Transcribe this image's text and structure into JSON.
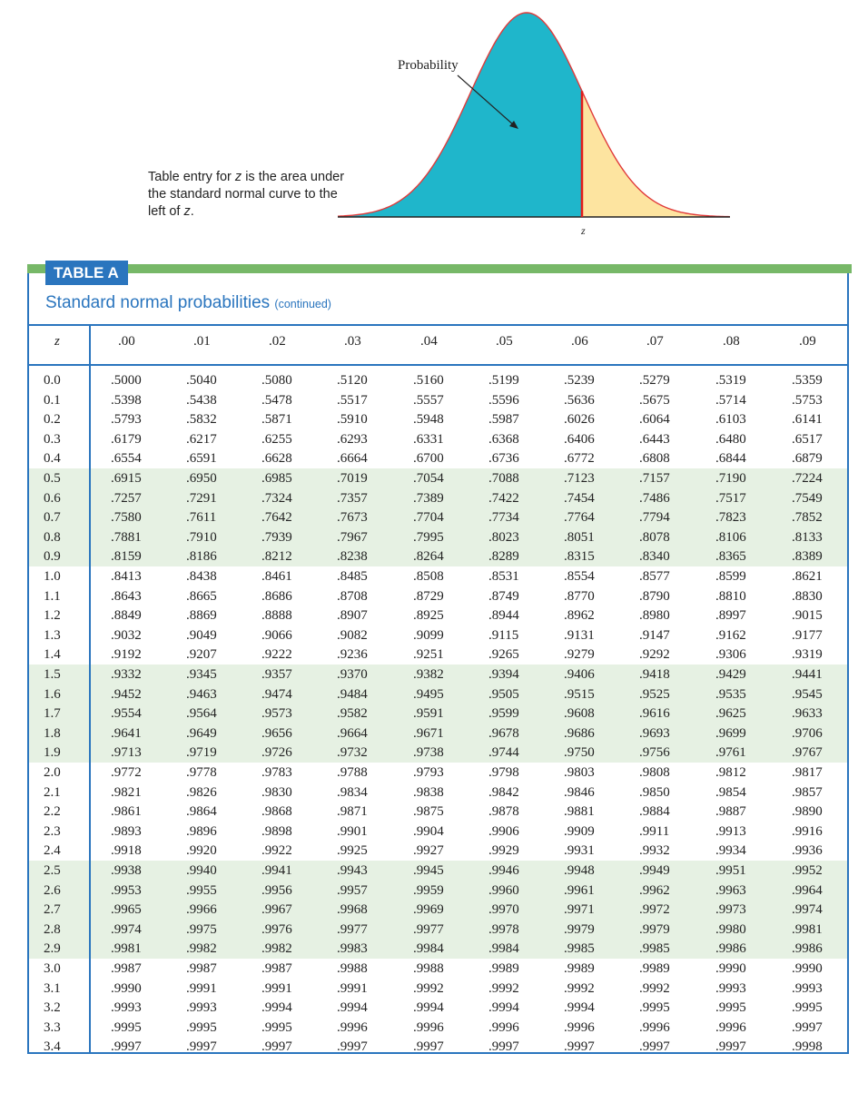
{
  "figure": {
    "probability_label": "Probability",
    "z_label": "z",
    "colors": {
      "shaded_area": "#1fb6cb",
      "right_tail": "#fde4a0",
      "curve": "#e03a3a",
      "z_line": "#e21b1b"
    }
  },
  "caption": {
    "text_1": "Table entry for ",
    "z1": "z",
    "text_2": " is the area under the standard normal curve to the left of ",
    "z2": "z",
    "text_3": "."
  },
  "table": {
    "label": "TABLE A",
    "title": "Standard normal probabilities",
    "title_note": "(continued)",
    "corner_header": "z",
    "column_headers": [
      ".00",
      ".01",
      ".02",
      ".03",
      ".04",
      ".05",
      ".06",
      ".07",
      ".08",
      ".09"
    ],
    "rows": [
      {
        "z": "0.0",
        "values": [
          ".5000",
          ".5040",
          ".5080",
          ".5120",
          ".5160",
          ".5199",
          ".5239",
          ".5279",
          ".5319",
          ".5359"
        ]
      },
      {
        "z": "0.1",
        "values": [
          ".5398",
          ".5438",
          ".5478",
          ".5517",
          ".5557",
          ".5596",
          ".5636",
          ".5675",
          ".5714",
          ".5753"
        ]
      },
      {
        "z": "0.2",
        "values": [
          ".5793",
          ".5832",
          ".5871",
          ".5910",
          ".5948",
          ".5987",
          ".6026",
          ".6064",
          ".6103",
          ".6141"
        ]
      },
      {
        "z": "0.3",
        "values": [
          ".6179",
          ".6217",
          ".6255",
          ".6293",
          ".6331",
          ".6368",
          ".6406",
          ".6443",
          ".6480",
          ".6517"
        ]
      },
      {
        "z": "0.4",
        "values": [
          ".6554",
          ".6591",
          ".6628",
          ".6664",
          ".6700",
          ".6736",
          ".6772",
          ".6808",
          ".6844",
          ".6879"
        ]
      },
      {
        "z": "0.5",
        "values": [
          ".6915",
          ".6950",
          ".6985",
          ".7019",
          ".7054",
          ".7088",
          ".7123",
          ".7157",
          ".7190",
          ".7224"
        ]
      },
      {
        "z": "0.6",
        "values": [
          ".7257",
          ".7291",
          ".7324",
          ".7357",
          ".7389",
          ".7422",
          ".7454",
          ".7486",
          ".7517",
          ".7549"
        ]
      },
      {
        "z": "0.7",
        "values": [
          ".7580",
          ".7611",
          ".7642",
          ".7673",
          ".7704",
          ".7734",
          ".7764",
          ".7794",
          ".7823",
          ".7852"
        ]
      },
      {
        "z": "0.8",
        "values": [
          ".7881",
          ".7910",
          ".7939",
          ".7967",
          ".7995",
          ".8023",
          ".8051",
          ".8078",
          ".8106",
          ".8133"
        ]
      },
      {
        "z": "0.9",
        "values": [
          ".8159",
          ".8186",
          ".8212",
          ".8238",
          ".8264",
          ".8289",
          ".8315",
          ".8340",
          ".8365",
          ".8389"
        ]
      },
      {
        "z": "1.0",
        "values": [
          ".8413",
          ".8438",
          ".8461",
          ".8485",
          ".8508",
          ".8531",
          ".8554",
          ".8577",
          ".8599",
          ".8621"
        ]
      },
      {
        "z": "1.1",
        "values": [
          ".8643",
          ".8665",
          ".8686",
          ".8708",
          ".8729",
          ".8749",
          ".8770",
          ".8790",
          ".8810",
          ".8830"
        ]
      },
      {
        "z": "1.2",
        "values": [
          ".8849",
          ".8869",
          ".8888",
          ".8907",
          ".8925",
          ".8944",
          ".8962",
          ".8980",
          ".8997",
          ".9015"
        ]
      },
      {
        "z": "1.3",
        "values": [
          ".9032",
          ".9049",
          ".9066",
          ".9082",
          ".9099",
          ".9115",
          ".9131",
          ".9147",
          ".9162",
          ".9177"
        ]
      },
      {
        "z": "1.4",
        "values": [
          ".9192",
          ".9207",
          ".9222",
          ".9236",
          ".9251",
          ".9265",
          ".9279",
          ".9292",
          ".9306",
          ".9319"
        ]
      },
      {
        "z": "1.5",
        "values": [
          ".9332",
          ".9345",
          ".9357",
          ".9370",
          ".9382",
          ".9394",
          ".9406",
          ".9418",
          ".9429",
          ".9441"
        ]
      },
      {
        "z": "1.6",
        "values": [
          ".9452",
          ".9463",
          ".9474",
          ".9484",
          ".9495",
          ".9505",
          ".9515",
          ".9525",
          ".9535",
          ".9545"
        ]
      },
      {
        "z": "1.7",
        "values": [
          ".9554",
          ".9564",
          ".9573",
          ".9582",
          ".9591",
          ".9599",
          ".9608",
          ".9616",
          ".9625",
          ".9633"
        ]
      },
      {
        "z": "1.8",
        "values": [
          ".9641",
          ".9649",
          ".9656",
          ".9664",
          ".9671",
          ".9678",
          ".9686",
          ".9693",
          ".9699",
          ".9706"
        ]
      },
      {
        "z": "1.9",
        "values": [
          ".9713",
          ".9719",
          ".9726",
          ".9732",
          ".9738",
          ".9744",
          ".9750",
          ".9756",
          ".9761",
          ".9767"
        ]
      },
      {
        "z": "2.0",
        "values": [
          ".9772",
          ".9778",
          ".9783",
          ".9788",
          ".9793",
          ".9798",
          ".9803",
          ".9808",
          ".9812",
          ".9817"
        ]
      },
      {
        "z": "2.1",
        "values": [
          ".9821",
          ".9826",
          ".9830",
          ".9834",
          ".9838",
          ".9842",
          ".9846",
          ".9850",
          ".9854",
          ".9857"
        ]
      },
      {
        "z": "2.2",
        "values": [
          ".9861",
          ".9864",
          ".9868",
          ".9871",
          ".9875",
          ".9878",
          ".9881",
          ".9884",
          ".9887",
          ".9890"
        ]
      },
      {
        "z": "2.3",
        "values": [
          ".9893",
          ".9896",
          ".9898",
          ".9901",
          ".9904",
          ".9906",
          ".9909",
          ".9911",
          ".9913",
          ".9916"
        ]
      },
      {
        "z": "2.4",
        "values": [
          ".9918",
          ".9920",
          ".9922",
          ".9925",
          ".9927",
          ".9929",
          ".9931",
          ".9932",
          ".9934",
          ".9936"
        ]
      },
      {
        "z": "2.5",
        "values": [
          ".9938",
          ".9940",
          ".9941",
          ".9943",
          ".9945",
          ".9946",
          ".9948",
          ".9949",
          ".9951",
          ".9952"
        ]
      },
      {
        "z": "2.6",
        "values": [
          ".9953",
          ".9955",
          ".9956",
          ".9957",
          ".9959",
          ".9960",
          ".9961",
          ".9962",
          ".9963",
          ".9964"
        ]
      },
      {
        "z": "2.7",
        "values": [
          ".9965",
          ".9966",
          ".9967",
          ".9968",
          ".9969",
          ".9970",
          ".9971",
          ".9972",
          ".9973",
          ".9974"
        ]
      },
      {
        "z": "2.8",
        "values": [
          ".9974",
          ".9975",
          ".9976",
          ".9977",
          ".9977",
          ".9978",
          ".9979",
          ".9979",
          ".9980",
          ".9981"
        ]
      },
      {
        "z": "2.9",
        "values": [
          ".9981",
          ".9982",
          ".9982",
          ".9983",
          ".9984",
          ".9984",
          ".9985",
          ".9985",
          ".9986",
          ".9986"
        ]
      },
      {
        "z": "3.0",
        "values": [
          ".9987",
          ".9987",
          ".9987",
          ".9988",
          ".9988",
          ".9989",
          ".9989",
          ".9989",
          ".9990",
          ".9990"
        ]
      },
      {
        "z": "3.1",
        "values": [
          ".9990",
          ".9991",
          ".9991",
          ".9991",
          ".9992",
          ".9992",
          ".9992",
          ".9992",
          ".9993",
          ".9993"
        ]
      },
      {
        "z": "3.2",
        "values": [
          ".9993",
          ".9993",
          ".9994",
          ".9994",
          ".9994",
          ".9994",
          ".9994",
          ".9995",
          ".9995",
          ".9995"
        ]
      },
      {
        "z": "3.3",
        "values": [
          ".9995",
          ".9995",
          ".9995",
          ".9996",
          ".9996",
          ".9996",
          ".9996",
          ".9996",
          ".9996",
          ".9997"
        ]
      },
      {
        "z": "3.4",
        "values": [
          ".9997",
          ".9997",
          ".9997",
          ".9997",
          ".9997",
          ".9997",
          ".9997",
          ".9997",
          ".9997",
          ".9998"
        ]
      }
    ]
  }
}
